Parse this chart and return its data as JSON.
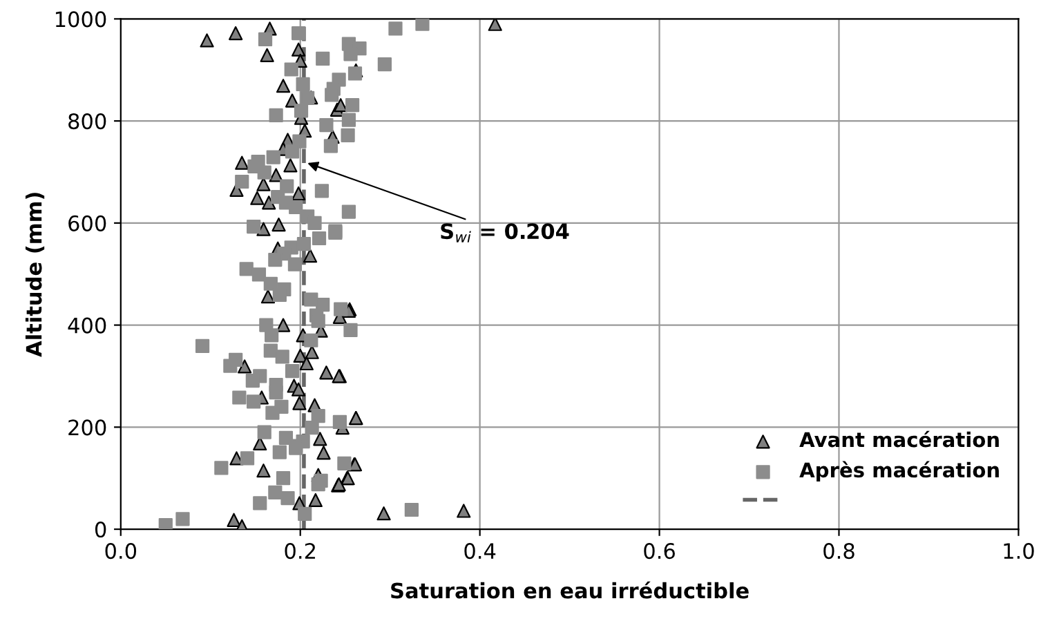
{
  "chart_data": {
    "type": "scatter",
    "xlabel": "Saturation en eau irréductible",
    "ylabel": "Altitude (mm)",
    "xlim": [
      0,
      1
    ],
    "ylim": [
      0,
      1000
    ],
    "xticks": [
      {
        "value": 0,
        "label": "0.0"
      },
      {
        "value": 0.2,
        "label": "0.2"
      },
      {
        "value": 0.4,
        "label": "0.4"
      },
      {
        "value": 0.6,
        "label": "0.6"
      },
      {
        "value": 0.8,
        "label": "0.8"
      },
      {
        "value": 1,
        "label": "1.0"
      }
    ],
    "yticks": [
      0,
      200,
      400,
      600,
      800,
      1000
    ],
    "grid": true,
    "legend": "bottom right",
    "series": [
      {
        "name": "Avant macération",
        "color": "#808080",
        "marker": "triangle",
        "x": [
          0.096,
          0.128,
          0.166,
          0.163,
          0.198,
          0.2,
          0.262,
          0.181,
          0.191,
          0.212,
          0.241,
          0.245,
          0.201,
          0.205,
          0.236,
          0.186,
          0.181,
          0.189,
          0.135,
          0.129,
          0.159,
          0.173,
          0.198,
          0.152,
          0.165,
          0.176,
          0.159,
          0.417,
          0.255,
          0.244,
          0.262,
          0.26,
          0.252,
          0.242,
          0.293,
          0.382,
          0.175,
          0.211,
          0.164,
          0.181,
          0.203,
          0.223,
          0.254,
          0.244,
          0.213,
          0.2,
          0.207,
          0.138,
          0.229,
          0.243,
          0.193,
          0.198,
          0.157,
          0.199,
          0.216,
          0.262,
          0.222,
          0.155,
          0.247,
          0.226,
          0.129,
          0.261,
          0.159,
          0.253,
          0.243,
          0.22,
          0.217,
          0.199,
          0.126,
          0.135
        ],
        "values": [
          958,
          972,
          981,
          929,
          940,
          918,
          899,
          869,
          840,
          846,
          822,
          831,
          806,
          781,
          769,
          763,
          745,
          713,
          718,
          665,
          676,
          694,
          658,
          649,
          640,
          597,
          588,
          990,
          431,
          300,
          218,
          127,
          100,
          86,
          31,
          36,
          550,
          536,
          456,
          400,
          380,
          389,
          428,
          416,
          347,
          340,
          325,
          319,
          307,
          300,
          281,
          274,
          258,
          247,
          243,
          218,
          177,
          168,
          199,
          150,
          139,
          127,
          115,
          100,
          88,
          106,
          57,
          51,
          18,
          6
        ]
      },
      {
        "name": "Après macération",
        "color": "#8c8c8c",
        "marker": "square",
        "x": [
          0.198,
          0.161,
          0.306,
          0.336,
          0.254,
          0.266,
          0.256,
          0.225,
          0.294,
          0.19,
          0.261,
          0.243,
          0.237,
          0.235,
          0.203,
          0.208,
          0.258,
          0.201,
          0.173,
          0.254,
          0.229,
          0.253,
          0.234,
          0.199,
          0.191,
          0.17,
          0.153,
          0.149,
          0.16,
          0.135,
          0.185,
          0.224,
          0.175,
          0.184,
          0.195,
          0.254,
          0.208,
          0.216,
          0.148,
          0.239,
          0.221,
          0.239,
          0.204,
          0.19,
          0.182,
          0.172,
          0.194,
          0.14,
          0.154,
          0.167,
          0.182,
          0.177,
          0.212,
          0.225,
          0.218,
          0.22,
          0.245,
          0.256,
          0.162,
          0.168,
          0.091,
          0.167,
          0.18,
          0.212,
          0.128,
          0.122,
          0.155,
          0.147,
          0.173,
          0.191,
          0.173,
          0.132,
          0.148,
          0.179,
          0.169,
          0.244,
          0.22,
          0.213,
          0.16,
          0.184,
          0.203,
          0.195,
          0.141,
          0.112,
          0.177,
          0.195,
          0.181,
          0.22,
          0.223,
          0.249,
          0.172,
          0.155,
          0.186,
          0.205,
          0.069,
          0.05,
          0.324
        ],
        "values": [
          972,
          960,
          981,
          990,
          951,
          942,
          931,
          922,
          911,
          901,
          893,
          881,
          863,
          851,
          872,
          845,
          831,
          820,
          811,
          802,
          792,
          772,
          751,
          760,
          740,
          729,
          720,
          711,
          699,
          681,
          672,
          663,
          651,
          640,
          631,
          622,
          613,
          600,
          593,
          584,
          570,
          581,
          559,
          552,
          540,
          528,
          519,
          510,
          499,
          481,
          470,
          459,
          450,
          440,
          419,
          408,
          431,
          390,
          400,
          380,
          359,
          350,
          338,
          370,
          332,
          320,
          300,
          291,
          283,
          310,
          268,
          258,
          250,
          240,
          228,
          210,
          222,
          199,
          190,
          179,
          172,
          163,
          139,
          120,
          151,
          159,
          100,
          88,
          95,
          129,
          72,
          51,
          61,
          30,
          20,
          8,
          38
        ]
      }
    ],
    "ref_lines": [
      {
        "axis": "x",
        "value": 0.204,
        "color": "#666666",
        "line_style": "dashed"
      }
    ],
    "annotations": [
      {
        "text": "S$_{wi}$ = 0.204",
        "x": 0.204,
        "y": 720
      }
    ]
  }
}
